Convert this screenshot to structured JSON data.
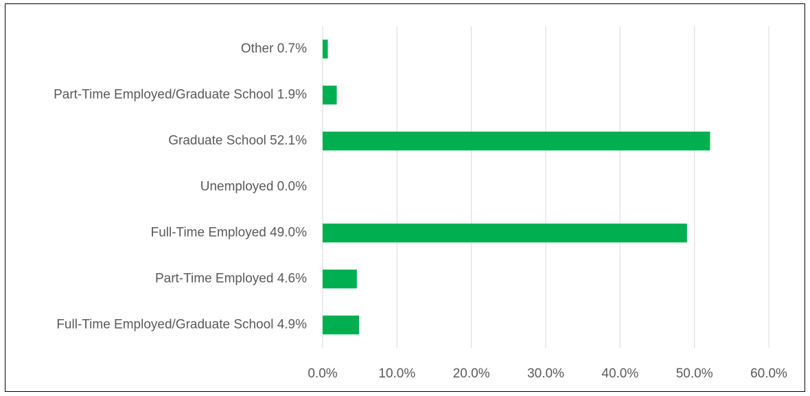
{
  "chart_data": {
    "type": "bar",
    "orientation": "horizontal",
    "title": "",
    "xlabel": "",
    "ylabel": "",
    "categories": [
      "Other 0.7%",
      "Part-Time Employed/Graduate School 1.9%",
      "Graduate School 52.1%",
      "Unemployed 0.0%",
      "Full-Time Employed 49.0%",
      "Part-Time Employed 4.6%",
      "Full-Time Employed/Graduate School 4.9%"
    ],
    "values": [
      0.7,
      1.9,
      52.1,
      0.0,
      49.0,
      4.6,
      4.9
    ],
    "xlim": [
      0,
      60
    ],
    "x_ticks": [
      "0.0%",
      "10.0%",
      "20.0%",
      "30.0%",
      "40.0%",
      "50.0%",
      "60.0%"
    ],
    "grid": "vertical",
    "legend": "none",
    "bar_color": "#00B050",
    "grid_color": "#D9D9D9",
    "text_color": "#595959"
  }
}
